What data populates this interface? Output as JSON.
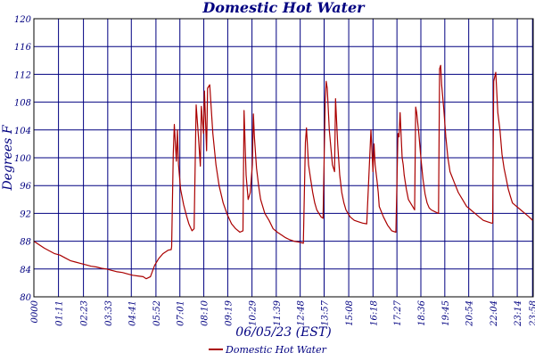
{
  "chart_data": {
    "type": "line",
    "title": "Domestic Hot Water",
    "xlabel": "06/05/23 (EST)",
    "ylabel": "Degrees F",
    "ylim": [
      80,
      120
    ],
    "yticks": [
      "80",
      "84",
      "88",
      "92",
      "96",
      "100",
      "104",
      "108",
      "112",
      "116",
      "120"
    ],
    "xlim_hours": [
      0,
      24
    ],
    "xticks": [
      {
        "label": "0000",
        "h": 0.0
      },
      {
        "label": "01:11",
        "h": 1.183
      },
      {
        "label": "02:23",
        "h": 2.383
      },
      {
        "label": "03:33",
        "h": 3.55
      },
      {
        "label": "04:41",
        "h": 4.683
      },
      {
        "label": "05:52",
        "h": 5.867
      },
      {
        "label": "07:01",
        "h": 7.017
      },
      {
        "label": "08:10",
        "h": 8.167
      },
      {
        "label": "09:19",
        "h": 9.317
      },
      {
        "label": "10:29",
        "h": 10.483
      },
      {
        "label": "11:39",
        "h": 11.65
      },
      {
        "label": "12:48",
        "h": 12.8
      },
      {
        "label": "13:57",
        "h": 13.95
      },
      {
        "label": "15:08",
        "h": 15.133
      },
      {
        "label": "16:18",
        "h": 16.3
      },
      {
        "label": "17:27",
        "h": 17.45
      },
      {
        "label": "18:36",
        "h": 18.6
      },
      {
        "label": "19:45",
        "h": 19.75
      },
      {
        "label": "20:54",
        "h": 20.9
      },
      {
        "label": "22:04",
        "h": 22.067
      },
      {
        "label": "23:14",
        "h": 23.233
      },
      {
        "label": "23:58",
        "h": 23.967
      }
    ],
    "grid": true,
    "legend_position": "bottom",
    "series": [
      {
        "name": "Domestic Hot Water",
        "color": "#aa0000",
        "x_hours": [
          0.0,
          0.25,
          0.5,
          0.75,
          1.0,
          1.25,
          1.5,
          1.75,
          2.0,
          2.25,
          2.5,
          2.75,
          3.0,
          3.25,
          3.5,
          3.75,
          4.0,
          4.25,
          4.5,
          4.75,
          5.0,
          5.25,
          5.4,
          5.6,
          5.8,
          6.0,
          6.2,
          6.45,
          6.6,
          6.62,
          6.7,
          6.75,
          6.85,
          6.9,
          6.95,
          7.05,
          7.2,
          7.35,
          7.45,
          7.6,
          7.7,
          7.8,
          7.9,
          8.0,
          8.05,
          8.15,
          8.2,
          8.3,
          8.35,
          8.45,
          8.6,
          8.75,
          8.9,
          9.1,
          9.3,
          9.5,
          9.7,
          9.9,
          10.05,
          10.1,
          10.2,
          10.3,
          10.4,
          10.5,
          10.55,
          10.6,
          10.7,
          10.8,
          10.9,
          11.1,
          11.3,
          11.5,
          11.7,
          11.9,
          12.1,
          12.3,
          12.5,
          12.7,
          12.85,
          12.95,
          13.05,
          13.1,
          13.2,
          13.3,
          13.4,
          13.5,
          13.6,
          13.7,
          13.8,
          13.9,
          14.0,
          14.05,
          14.1,
          14.2,
          14.35,
          14.45,
          14.5,
          14.6,
          14.7,
          14.8,
          14.9,
          15.0,
          15.1,
          15.2,
          15.4,
          15.6,
          15.8,
          16.0,
          16.2,
          16.3,
          16.35,
          16.4,
          16.5,
          16.55,
          16.6,
          16.8,
          17.0,
          17.2,
          17.4,
          17.5,
          17.55,
          17.6,
          17.7,
          17.75,
          17.8,
          17.9,
          18.0,
          18.2,
          18.3,
          18.35,
          18.4,
          18.5,
          18.6,
          18.7,
          18.8,
          18.9,
          19.0,
          19.1,
          19.3,
          19.45,
          19.5,
          19.55,
          19.6,
          19.7,
          19.8,
          19.9,
          20.0,
          20.2,
          20.4,
          20.6,
          20.8,
          21.0,
          21.2,
          21.4,
          21.6,
          21.8,
          22.0,
          22.05,
          22.1,
          22.2,
          22.3,
          22.4,
          22.5,
          22.6,
          22.7,
          22.8,
          22.9,
          23.0,
          23.2,
          23.4,
          23.6,
          23.8,
          23.97
        ],
        "y": [
          88.0,
          87.5,
          87.0,
          86.6,
          86.2,
          86.0,
          85.6,
          85.2,
          85.0,
          84.8,
          84.6,
          84.4,
          84.3,
          84.1,
          84.0,
          83.8,
          83.6,
          83.5,
          83.3,
          83.1,
          83.0,
          82.9,
          82.6,
          82.9,
          84.5,
          85.5,
          86.2,
          86.7,
          86.8,
          87.2,
          100.5,
          104.8,
          99.5,
          104.0,
          99.0,
          95.5,
          93.2,
          91.5,
          90.5,
          89.5,
          89.8,
          107.6,
          103.5,
          98.8,
          107.4,
          103.5,
          109.6,
          101.0,
          110.0,
          110.5,
          103.5,
          99.0,
          96.0,
          93.5,
          91.8,
          90.5,
          89.8,
          89.3,
          89.5,
          106.8,
          97.5,
          94.0,
          95.0,
          99.0,
          106.3,
          103.0,
          98.5,
          96.0,
          94.0,
          92.0,
          91.0,
          89.8,
          89.3,
          88.9,
          88.5,
          88.2,
          88.0,
          87.9,
          87.8,
          87.7,
          102.2,
          104.3,
          99.0,
          97.0,
          95.0,
          93.5,
          92.5,
          92.0,
          91.5,
          91.3,
          108.0,
          111.0,
          110.0,
          104.0,
          99.0,
          98.0,
          108.5,
          102.0,
          97.5,
          95.0,
          93.5,
          92.5,
          92.0,
          91.5,
          91.0,
          90.8,
          90.6,
          90.5,
          104.0,
          98.0,
          102.0,
          99.0,
          96.5,
          95.0,
          93.0,
          91.5,
          90.3,
          89.5,
          89.3,
          103.5,
          103.0,
          106.5,
          100.0,
          99.0,
          97.5,
          95.5,
          94.0,
          93.0,
          92.5,
          107.3,
          106.5,
          103.5,
          100.0,
          97.0,
          94.8,
          93.5,
          92.8,
          92.5,
          92.2,
          92.0,
          112.8,
          113.3,
          110.5,
          107.0,
          103.0,
          100.0,
          98.0,
          96.5,
          95.0,
          94.0,
          93.0,
          92.5,
          92.0,
          91.5,
          91.0,
          90.8,
          90.6,
          90.6,
          111.0,
          112.3,
          106.5,
          104.0,
          100.5,
          98.5,
          97.0,
          95.5,
          94.5,
          93.5,
          93.0,
          92.5,
          92.0,
          91.5,
          91.0
        ]
      }
    ]
  }
}
